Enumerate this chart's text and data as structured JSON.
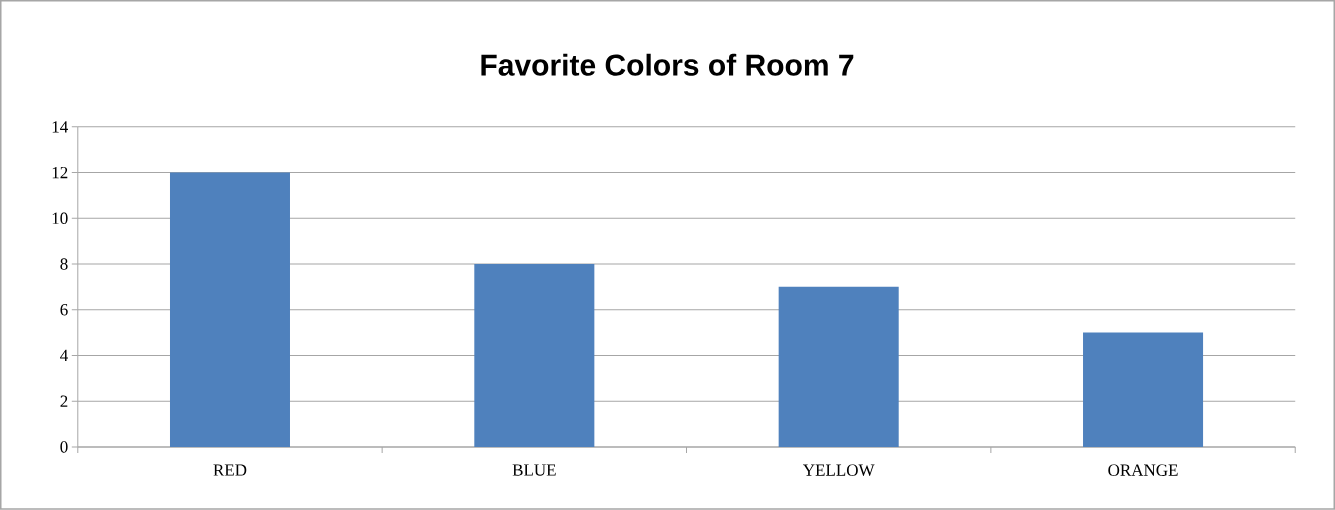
{
  "chart_data": {
    "type": "bar",
    "title": "Favorite Colors of Room 7",
    "categories": [
      "RED",
      "BLUE",
      "YELLOW",
      "ORANGE"
    ],
    "values": [
      12,
      8,
      7,
      5
    ],
    "color": "#4f81bd",
    "ylim": [
      0,
      14
    ],
    "yticks": [
      0,
      2,
      4,
      6,
      8,
      10,
      12,
      14
    ],
    "grid": "y"
  }
}
